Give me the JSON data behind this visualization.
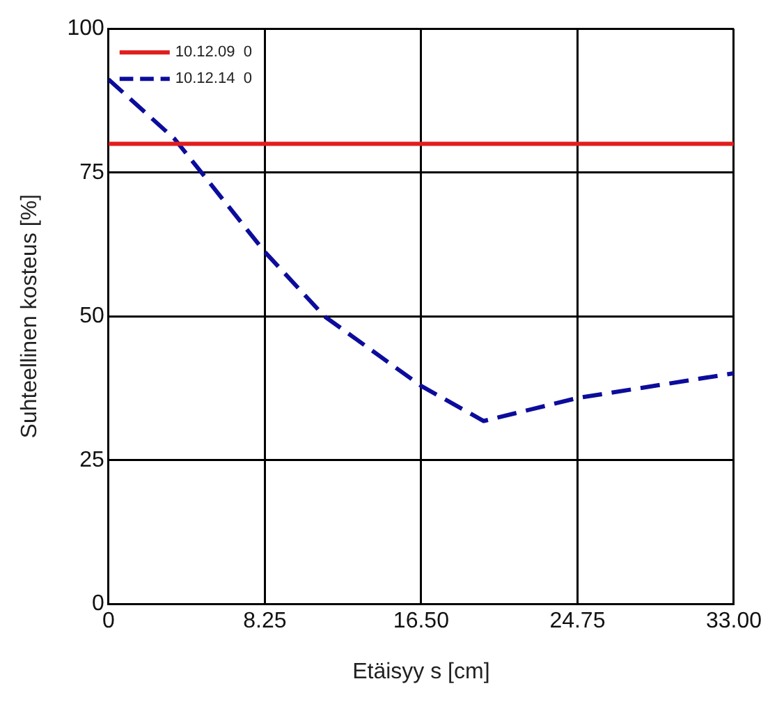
{
  "chart_data": {
    "type": "line",
    "xlabel": "Etäisyy s [cm]",
    "ylabel": "Suhteellinen kosteus [%]",
    "xlim": [
      0,
      33
    ],
    "xticks": [
      0,
      {
        "value": 8.25,
        "label": "8.25"
      },
      {
        "value": 16.5,
        "label": "16.50"
      },
      {
        "value": 24.75,
        "label": "24.75"
      },
      {
        "value": 33,
        "label": "33.00"
      }
    ],
    "ylim": [
      0,
      100
    ],
    "yticks": [
      0,
      25,
      50,
      75,
      100
    ],
    "grid": true,
    "legend": "top left",
    "marker": "none",
    "series": [
      {
        "name": "10.12.09  0",
        "color": "#e01e1e",
        "line_style": "solid",
        "x": [
          0,
          33
        ],
        "values": [
          80,
          80
        ]
      },
      {
        "name": "10.12.14  0",
        "color": "#0c0c9c",
        "line_style": "dashed",
        "x": [
          0,
          3.5,
          8.25,
          11.4,
          16.5,
          19.8,
          24.75,
          33
        ],
        "values": [
          91.2,
          80.8,
          61.2,
          50,
          37.9,
          31.8,
          35.8,
          40.1
        ]
      }
    ]
  }
}
